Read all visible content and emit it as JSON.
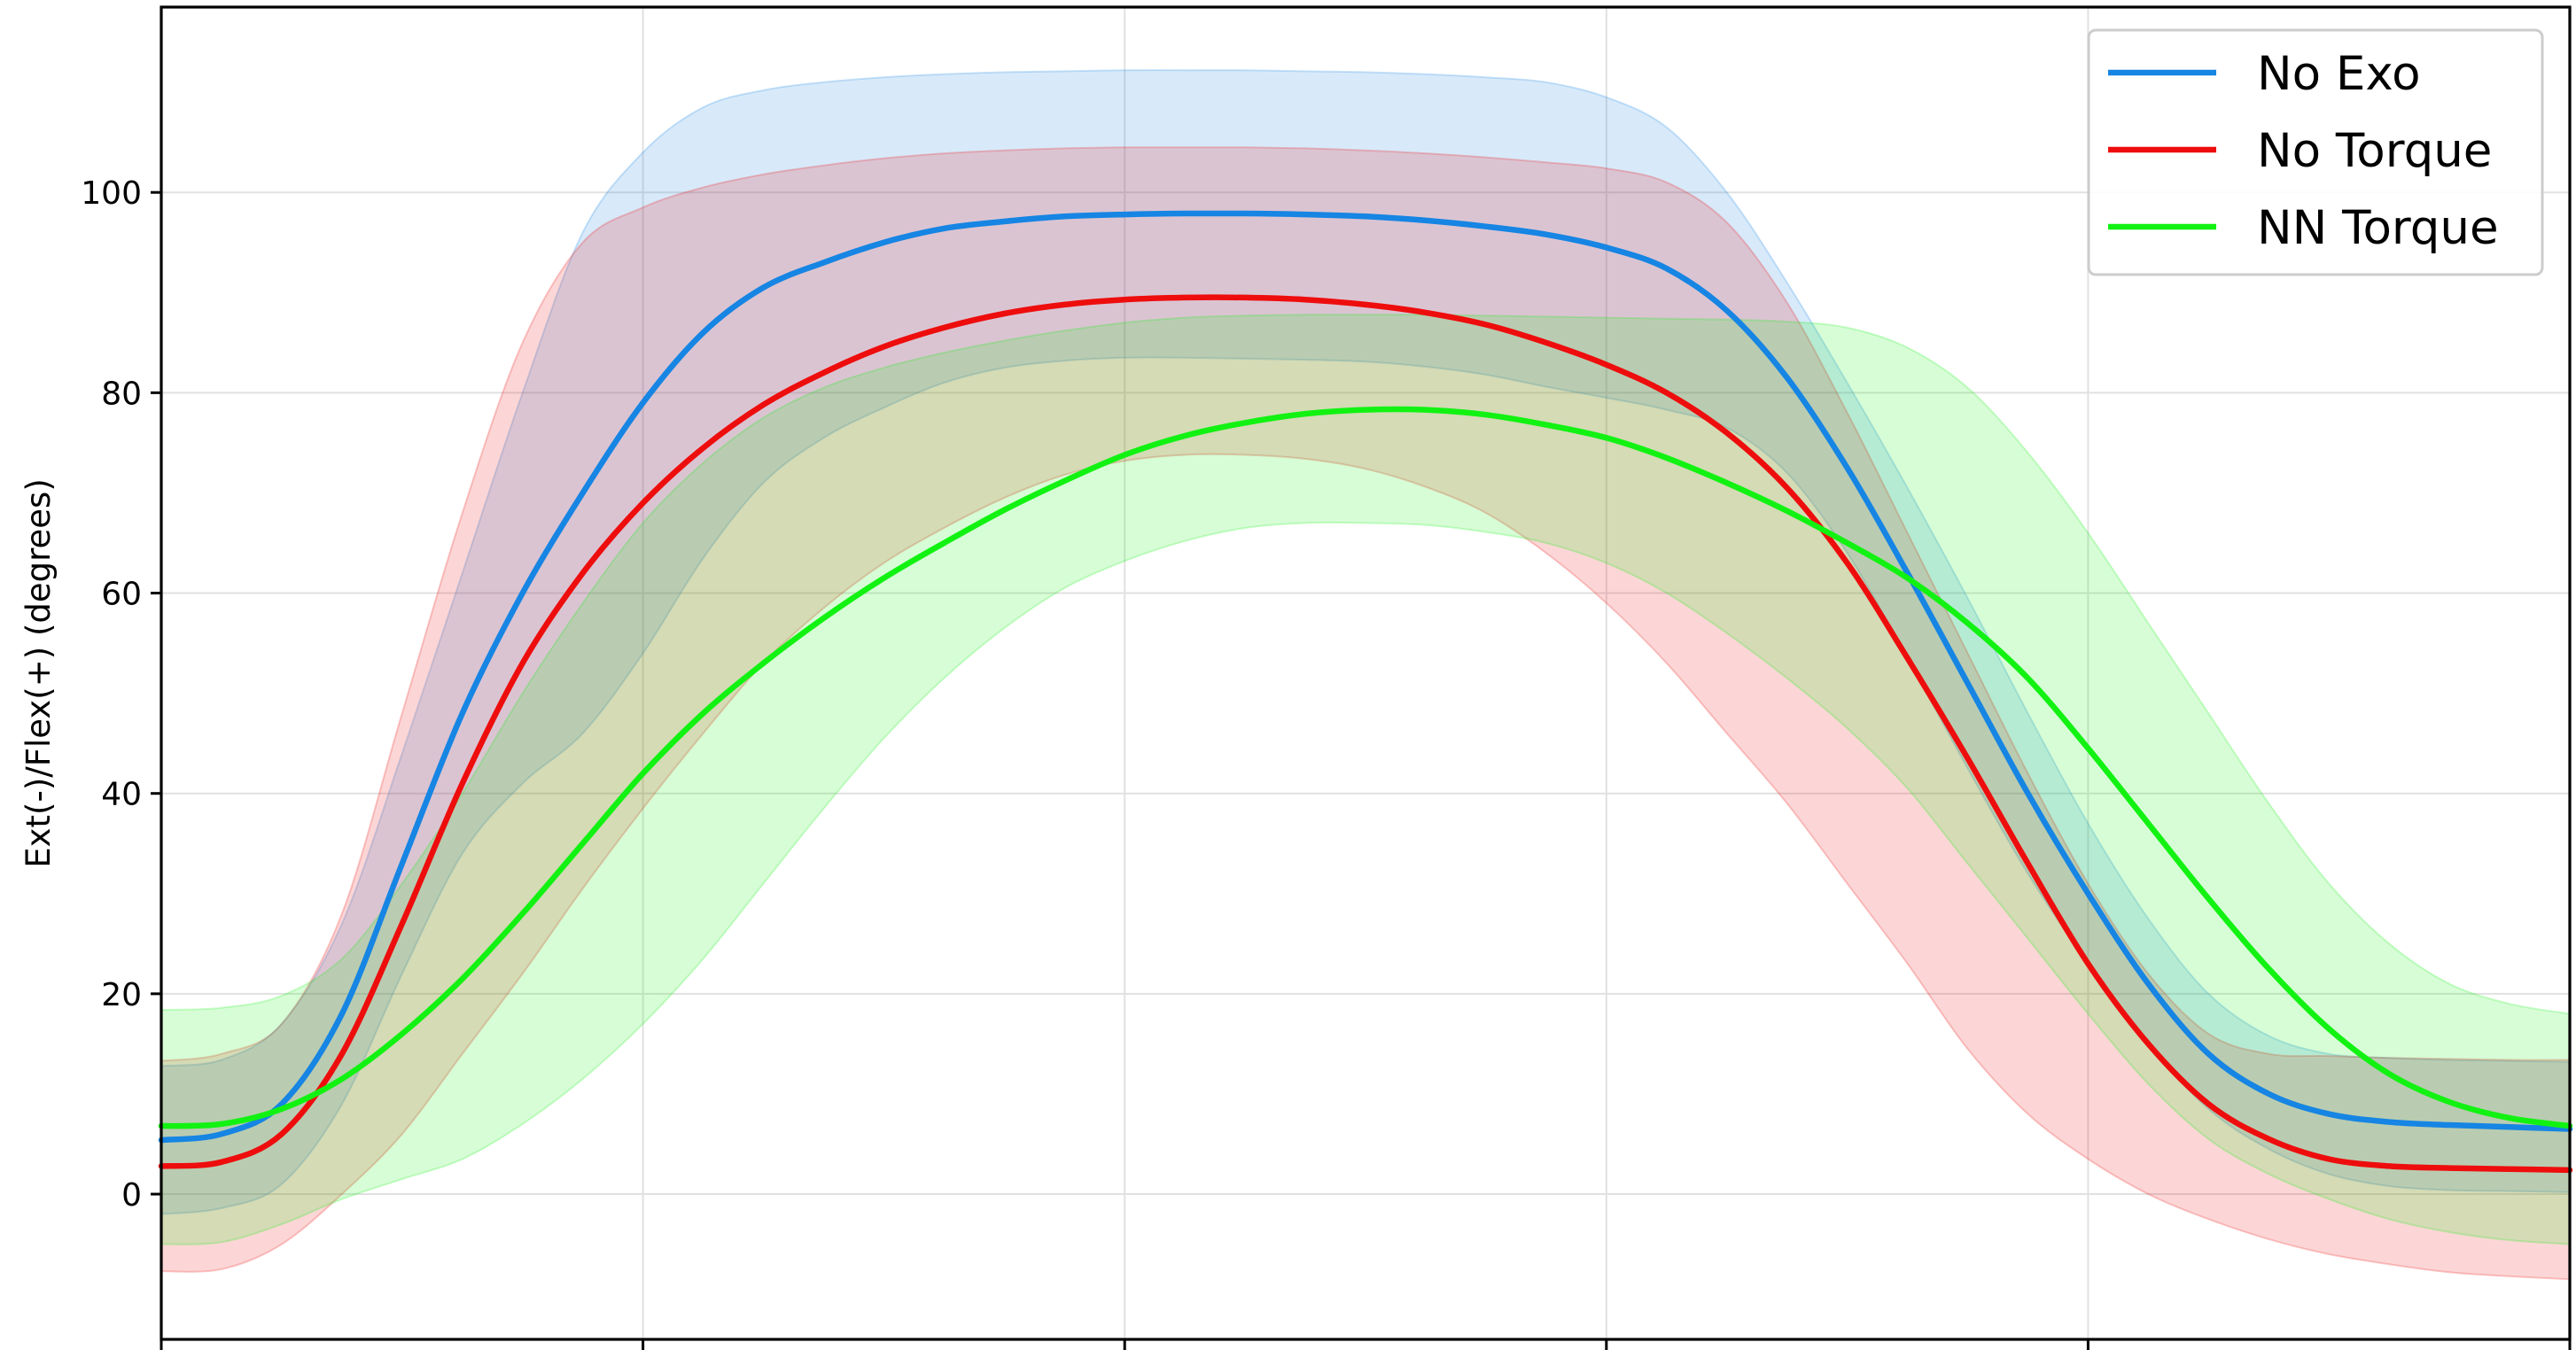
{
  "chart_data": {
    "type": "line",
    "title": "",
    "xlabel": "",
    "ylabel": "Ext(-)/Flex(+) (degrees)",
    "xlim": [
      0,
      100
    ],
    "ylim": [
      -14.5,
      118.5
    ],
    "x_ticks": [
      0,
      20,
      40,
      60,
      80,
      100
    ],
    "y_ticks": [
      0,
      20,
      40,
      60,
      80,
      100
    ],
    "y_tick_labels": [
      "0",
      "20",
      "40",
      "60",
      "80",
      "100"
    ],
    "grid": true,
    "legend_position": "top-right",
    "x": [
      0,
      2.5,
      5,
      7.5,
      10,
      12.5,
      15,
      17.5,
      20,
      22.5,
      25,
      27.5,
      30,
      32.5,
      35,
      37.5,
      40,
      42.5,
      45,
      47.5,
      50,
      52.5,
      55,
      57.5,
      60,
      62.5,
      65,
      67.5,
      70,
      72.5,
      75,
      77.5,
      80,
      82.5,
      85,
      87.5,
      90,
      92.5,
      95,
      97.5,
      100
    ],
    "series": [
      {
        "name": "No Exo",
        "color": "#1685e3",
        "values": [
          5.4,
          6,
          9,
          18,
          33,
          48,
          60,
          70,
          79,
          86,
          90.5,
          93,
          95,
          96.4,
          97.1,
          97.6,
          97.8,
          97.9,
          97.9,
          97.8,
          97.6,
          97.2,
          96.6,
          95.8,
          94.5,
          92.4,
          88.2,
          81.5,
          72.5,
          62,
          51,
          40,
          30,
          21,
          14,
          10,
          8,
          7.2,
          6.9,
          6.7,
          6.5
        ],
        "upper": [
          12.8,
          13.4,
          17,
          27,
          44,
          62,
          80,
          96,
          104,
          108.5,
          110.2,
          111,
          111.5,
          111.8,
          112,
          112.1,
          112.2,
          112.2,
          112.2,
          112.1,
          112,
          111.8,
          111.5,
          111,
          109.5,
          106.5,
          100,
          91,
          81,
          70.5,
          59.5,
          48,
          37,
          27.5,
          20,
          15.8,
          14,
          13.6,
          13.4,
          13.3,
          13.2
        ],
        "lower": [
          -2,
          -1.4,
          1,
          9,
          22,
          34,
          41,
          46,
          54,
          63.5,
          71,
          75.5,
          78.5,
          81,
          82.5,
          83.2,
          83.5,
          83.5,
          83.4,
          83.3,
          83.1,
          82.6,
          81.8,
          80.6,
          79.5,
          78.3,
          76.5,
          72,
          64,
          53.5,
          42.5,
          32,
          23,
          15,
          8.5,
          4.5,
          2,
          0.8,
          0.4,
          0.3,
          0.2
        ]
      },
      {
        "name": "No Torque",
        "color": "#ee0d0d",
        "values": [
          2.8,
          3.2,
          6,
          14,
          27,
          41,
          53,
          62,
          69,
          74.5,
          78.8,
          82,
          84.6,
          86.5,
          87.9,
          88.8,
          89.3,
          89.5,
          89.5,
          89.3,
          88.8,
          88,
          86.8,
          85,
          82.8,
          80,
          76,
          70.5,
          63,
          53.5,
          43.5,
          33,
          23,
          15,
          9,
          5.5,
          3.5,
          2.8,
          2.6,
          2.5,
          2.4
        ],
        "upper": [
          13.3,
          14,
          17,
          28,
          48,
          68,
          85,
          95,
          98.5,
          100.5,
          101.8,
          102.7,
          103.4,
          103.9,
          104.2,
          104.4,
          104.5,
          104.5,
          104.5,
          104.4,
          104.2,
          103.9,
          103.5,
          103,
          102.4,
          101,
          97,
          89,
          78,
          66,
          54,
          42,
          31,
          22,
          16,
          14,
          13.8,
          13.6,
          13.5,
          13.4,
          13.4
        ],
        "lower": [
          -7.7,
          -7.5,
          -5,
          0,
          6,
          14,
          22,
          30.5,
          38.5,
          46,
          53,
          58.5,
          63,
          66.5,
          69.5,
          71.8,
          73.2,
          73.8,
          73.8,
          73.4,
          72.4,
          70.6,
          68,
          64,
          59,
          53,
          46,
          39,
          31,
          23,
          14.5,
          8,
          3.5,
          0,
          -2.5,
          -4.5,
          -6,
          -7,
          -7.8,
          -8.2,
          -8.5
        ]
      },
      {
        "name": "NN Torque",
        "color": "#12f212",
        "values": [
          6.8,
          7,
          8.5,
          11.5,
          16,
          21.5,
          28,
          35,
          42,
          48,
          53,
          57.5,
          61.5,
          65,
          68.3,
          71.2,
          73.8,
          75.7,
          77,
          77.9,
          78.3,
          78.3,
          77.8,
          76.8,
          75.5,
          73.5,
          71,
          68.2,
          65,
          61.5,
          57,
          51.5,
          44.5,
          37,
          29.5,
          22.5,
          16.5,
          12,
          9.2,
          7.6,
          6.8
        ],
        "upper": [
          18.4,
          18.6,
          19.8,
          23.5,
          31,
          40,
          50,
          59,
          67,
          73,
          77.5,
          80.5,
          82.5,
          84,
          85.2,
          86.2,
          87,
          87.5,
          87.7,
          87.8,
          87.8,
          87.8,
          87.7,
          87.6,
          87.5,
          87.4,
          87.3,
          87.1,
          86.5,
          84.5,
          80.5,
          74,
          66,
          57,
          48,
          39,
          31,
          25,
          21,
          19,
          18
        ],
        "lower": [
          -5,
          -4.8,
          -3,
          -0.5,
          1.5,
          3.5,
          7,
          11.5,
          17,
          23.5,
          31,
          38.5,
          45.5,
          51.5,
          56.5,
          60.5,
          63.2,
          65.2,
          66.5,
          67,
          67,
          66.8,
          66.1,
          65,
          63,
          60,
          56,
          51.5,
          46.5,
          40.5,
          33,
          25.5,
          18,
          11,
          5.5,
          2,
          -0.5,
          -2.5,
          -3.8,
          -4.6,
          -5
        ]
      }
    ]
  }
}
